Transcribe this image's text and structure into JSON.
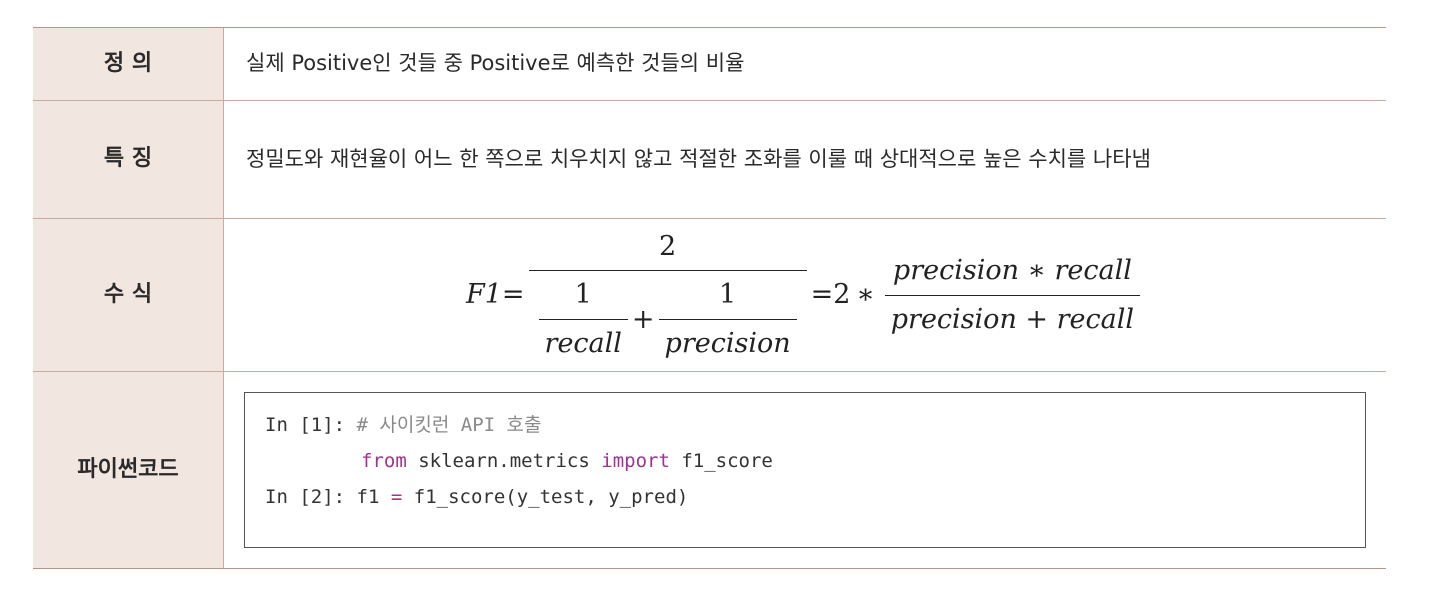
{
  "rows": {
    "definition": {
      "label": "정 의",
      "text": "실제 Positive인 것들 중 Positive로 예측한 것들의 비율"
    },
    "feature": {
      "label": "특 징",
      "text": "정밀도와 재현율이 어느 한 쪽으로 치우치지 않고 적절한 조화를 이룰 때 상대적으로 높은 수치를 나타냄"
    },
    "formula": {
      "label": "수 식",
      "lhs": "F1",
      "eq": "=",
      "numerator": "2",
      "one_a": "1",
      "recall": "recall",
      "plus": "+",
      "one_b": "1",
      "precision": "precision",
      "eq2": "=",
      "two": "2",
      "times": "∗",
      "rhs_numerator": "precision ∗ recall",
      "rhs_denominator": "precision + recall"
    },
    "code": {
      "label": "파이썬\n코드",
      "label_line1": "파이썬",
      "label_line2": "코드",
      "lines": [
        {
          "prompt": "In [1]:",
          "comment": "# 사이킷런 API 호출"
        },
        {
          "kw_from": "from",
          "module": "sklearn.metrics",
          "kw_import": "import",
          "name": "f1_score"
        },
        {
          "prompt": "In [2]:",
          "var": "f1",
          "op": "=",
          "call": "f1_score(y_test, y_pred)"
        }
      ]
    }
  }
}
